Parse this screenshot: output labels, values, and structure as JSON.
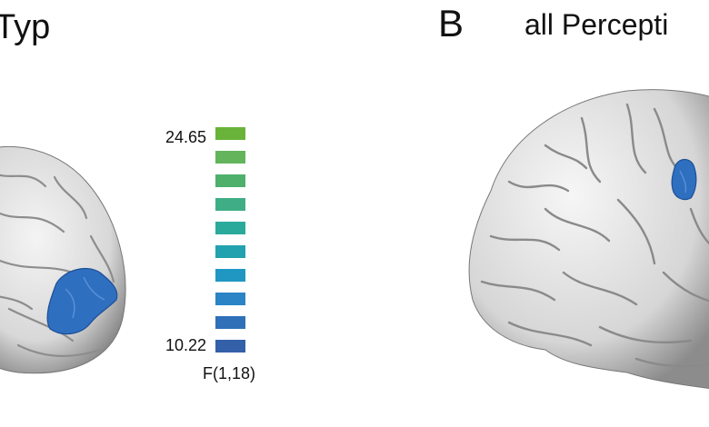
{
  "panel_a": {
    "title": "Typ"
  },
  "panel_b": {
    "letter": "B",
    "title": "all Percepti"
  },
  "colorbar": {
    "max_label": "24.65",
    "min_label": "10.22",
    "unit_label": "F(1,18)",
    "colors": [
      "#6ab33a",
      "#64b45c",
      "#4fb06c",
      "#3fae86",
      "#2aaa9b",
      "#22a2ae",
      "#1f97c2",
      "#2a84c5",
      "#2f70b8",
      "#3460aa"
    ]
  }
}
